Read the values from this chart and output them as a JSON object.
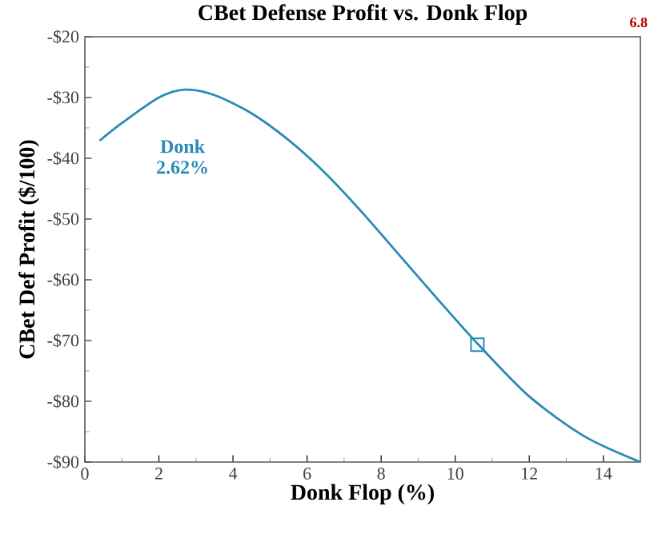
{
  "chart_data": {
    "type": "line",
    "title": "CBet Defense Profit vs. Donk Flop",
    "xlabel": "Donk Flop (%)",
    "ylabel": "CBet Def Profit ($/100)",
    "annotations": [
      "6.8",
      "Donk 2.62%"
    ],
    "series": [
      {
        "color": "#2a8ab8",
        "x": [
          0.4,
          1,
          2,
          2.7,
          3.5,
          4.5,
          5.5,
          6.5,
          7.5,
          8.5,
          9.5,
          10.6,
          12,
          13.5,
          15
        ],
        "values": [
          -37.1,
          -34.2,
          -30,
          -28.7,
          -29.6,
          -32.6,
          -37,
          -42.5,
          -49,
          -56,
          -63,
          -70.5,
          -79.2,
          -85.8,
          -90
        ]
      },
      {
        "type": "scatter",
        "marker": "square",
        "color": "#2a8ab8",
        "x": [
          10.6
        ],
        "values": [
          -70.7
        ]
      }
    ],
    "xlim": [
      0,
      15
    ],
    "ylim": [
      -90,
      -20
    ],
    "xticks": [
      0,
      2,
      4,
      6,
      8,
      10,
      12,
      14
    ],
    "yticks": [
      {
        "value": -90,
        "label": "-$90"
      },
      {
        "value": -80,
        "label": "-$80"
      },
      {
        "value": -70,
        "label": "-$70"
      },
      {
        "value": -60,
        "label": "-$60"
      },
      {
        "value": -50,
        "label": "-$50"
      },
      {
        "value": -40,
        "label": "-$40"
      },
      {
        "value": -30,
        "label": "-$30"
      },
      {
        "value": -20,
        "label": "-$20"
      }
    ],
    "grid": false
  }
}
